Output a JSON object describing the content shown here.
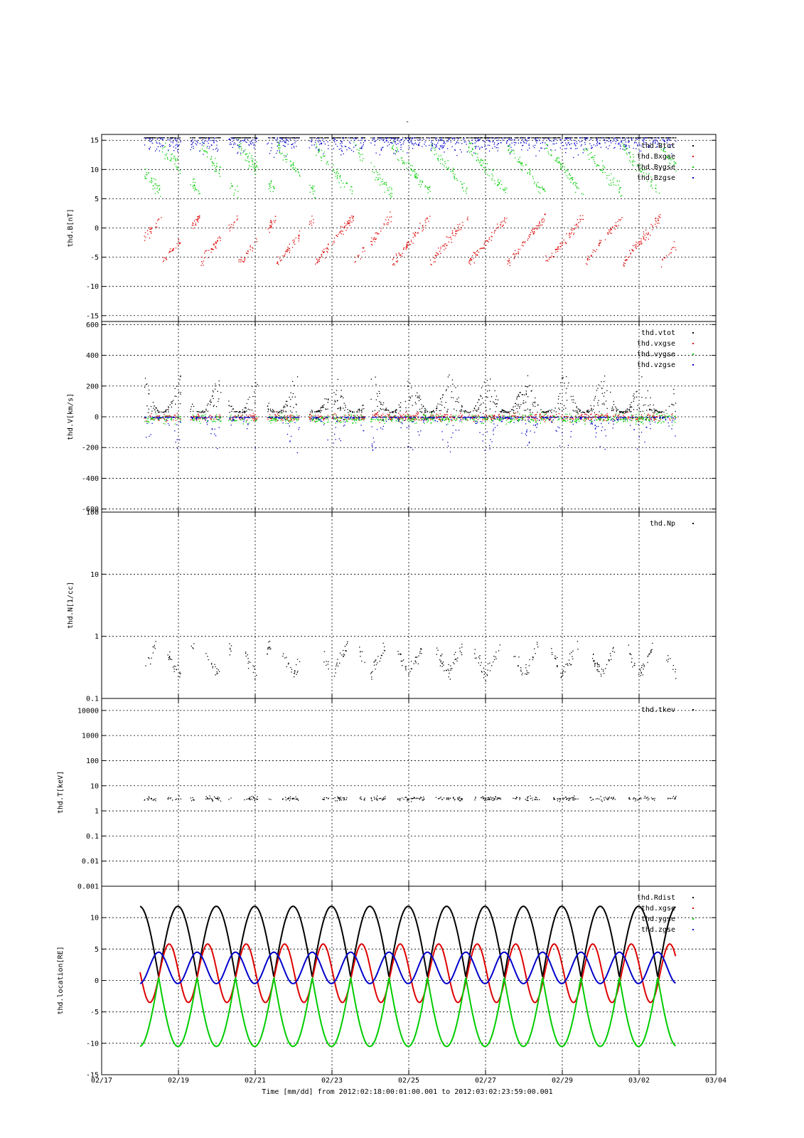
{
  "figure": {
    "title": "-",
    "xlabel": "Time [mm/dd]  from 2012:02:18:00:01:00.001  to  2012:03:02:23:59:00.001"
  },
  "colors": {
    "black": "#000000",
    "red": "#dd0000",
    "green": "#00cc00",
    "blue": "#0000cc"
  },
  "x_axis": {
    "range_days": [
      0,
      16
    ],
    "tick_labels": [
      "02/17",
      "02/19",
      "02/21",
      "02/23",
      "02/25",
      "02/27",
      "02/29",
      "03/02",
      "03/04"
    ],
    "tick_positions_days": [
      0,
      2,
      4,
      6,
      8,
      10,
      12,
      14,
      16
    ]
  },
  "chart_data": [
    {
      "type": "scatter",
      "ylabel": "thd.B[nT]",
      "ylim": [
        -16,
        16
      ],
      "yscale": "linear",
      "yticks": [
        15,
        10,
        5,
        0,
        -5,
        -10,
        -15
      ],
      "ytick_labels": [
        "15",
        "10",
        "5",
        "0",
        "-5",
        "-10",
        "-15"
      ],
      "grid": true,
      "legend_position": "top-right",
      "series": [
        {
          "name": "thd.Btot",
          "color": "#000000"
        },
        {
          "name": "thd.Bxgse",
          "color": "#dd0000"
        },
        {
          "name": "thd.Bygse",
          "color": "#00cc00"
        },
        {
          "name": "thd.Bzgse",
          "color": "#0000cc"
        }
      ],
      "legend_labels": [
        "thd.Btot",
        "thd.Bxgse",
        "thd.Bygse",
        "thd.Bzgse"
      ]
    },
    {
      "type": "scatter",
      "ylabel": "thd.V[km/s]",
      "ylim": [
        -620,
        620
      ],
      "yscale": "linear",
      "yticks": [
        600,
        400,
        200,
        0,
        -200,
        -400,
        -600
      ],
      "ytick_labels": [
        "600",
        "400",
        "200",
        "0",
        "-200",
        "-400",
        "-600"
      ],
      "grid": true,
      "legend_position": "top-right",
      "series": [
        {
          "name": "thd.vtot",
          "color": "#000000"
        },
        {
          "name": "thd.vxgse",
          "color": "#dd0000"
        },
        {
          "name": "thd.vygse",
          "color": "#00cc00"
        },
        {
          "name": "thd.vzgse",
          "color": "#0000cc"
        }
      ],
      "legend_labels": [
        "thd.vtot",
        "thd.vxgse",
        "thd.vygse",
        "thd.vzgse"
      ]
    },
    {
      "type": "scatter",
      "ylabel": "thd.N[1/cc]",
      "ylim": [
        0.1,
        100
      ],
      "yscale": "log",
      "yticks": [
        100,
        10,
        1,
        0.1
      ],
      "ytick_labels": [
        "100",
        "10",
        "1",
        "0.1"
      ],
      "grid": true,
      "legend_position": "top-right",
      "series": [
        {
          "name": "thd.Np",
          "color": "#000000"
        }
      ],
      "legend_labels": [
        "thd.Np"
      ]
    },
    {
      "type": "scatter",
      "ylabel": "thd.T[keV]",
      "ylim": [
        0.001,
        30000
      ],
      "yscale": "log",
      "yticks": [
        10000,
        1000,
        100,
        10,
        1,
        0.1,
        0.01,
        0.001
      ],
      "ytick_labels": [
        "10000",
        "1000",
        "100",
        "10",
        "1",
        "0.1",
        "0.01",
        "0.001"
      ],
      "grid": true,
      "legend_position": "top-right",
      "series": [
        {
          "name": "thd.tkev",
          "color": "#000000"
        }
      ],
      "legend_labels": [
        "thd.tkev"
      ]
    },
    {
      "type": "line",
      "ylabel": "thd.location[RE]",
      "ylim": [
        -15,
        15
      ],
      "yscale": "linear",
      "yticks": [
        15,
        10,
        5,
        0,
        -5,
        -10,
        -15
      ],
      "ytick_labels": [
        "",
        "10",
        "5",
        "0",
        "-5",
        "-10",
        "-15"
      ],
      "grid": true,
      "legend_position": "top-right",
      "series": [
        {
          "name": "thd.Rdist",
          "color": "#000000",
          "min": 0.5,
          "max": 11.8
        },
        {
          "name": "thd.xgse",
          "color": "#dd0000",
          "min": -3.5,
          "max": 5.8
        },
        {
          "name": "thd.ygse",
          "color": "#00cc00",
          "min": -10.5,
          "max": 0.5
        },
        {
          "name": "thd.zgse",
          "color": "#0000cc",
          "min": -0.5,
          "max": 4.5
        }
      ],
      "legend_labels": [
        "thd.Rdist",
        "thd.xgse",
        "thd.ygse",
        "thd.zgse"
      ]
    }
  ]
}
